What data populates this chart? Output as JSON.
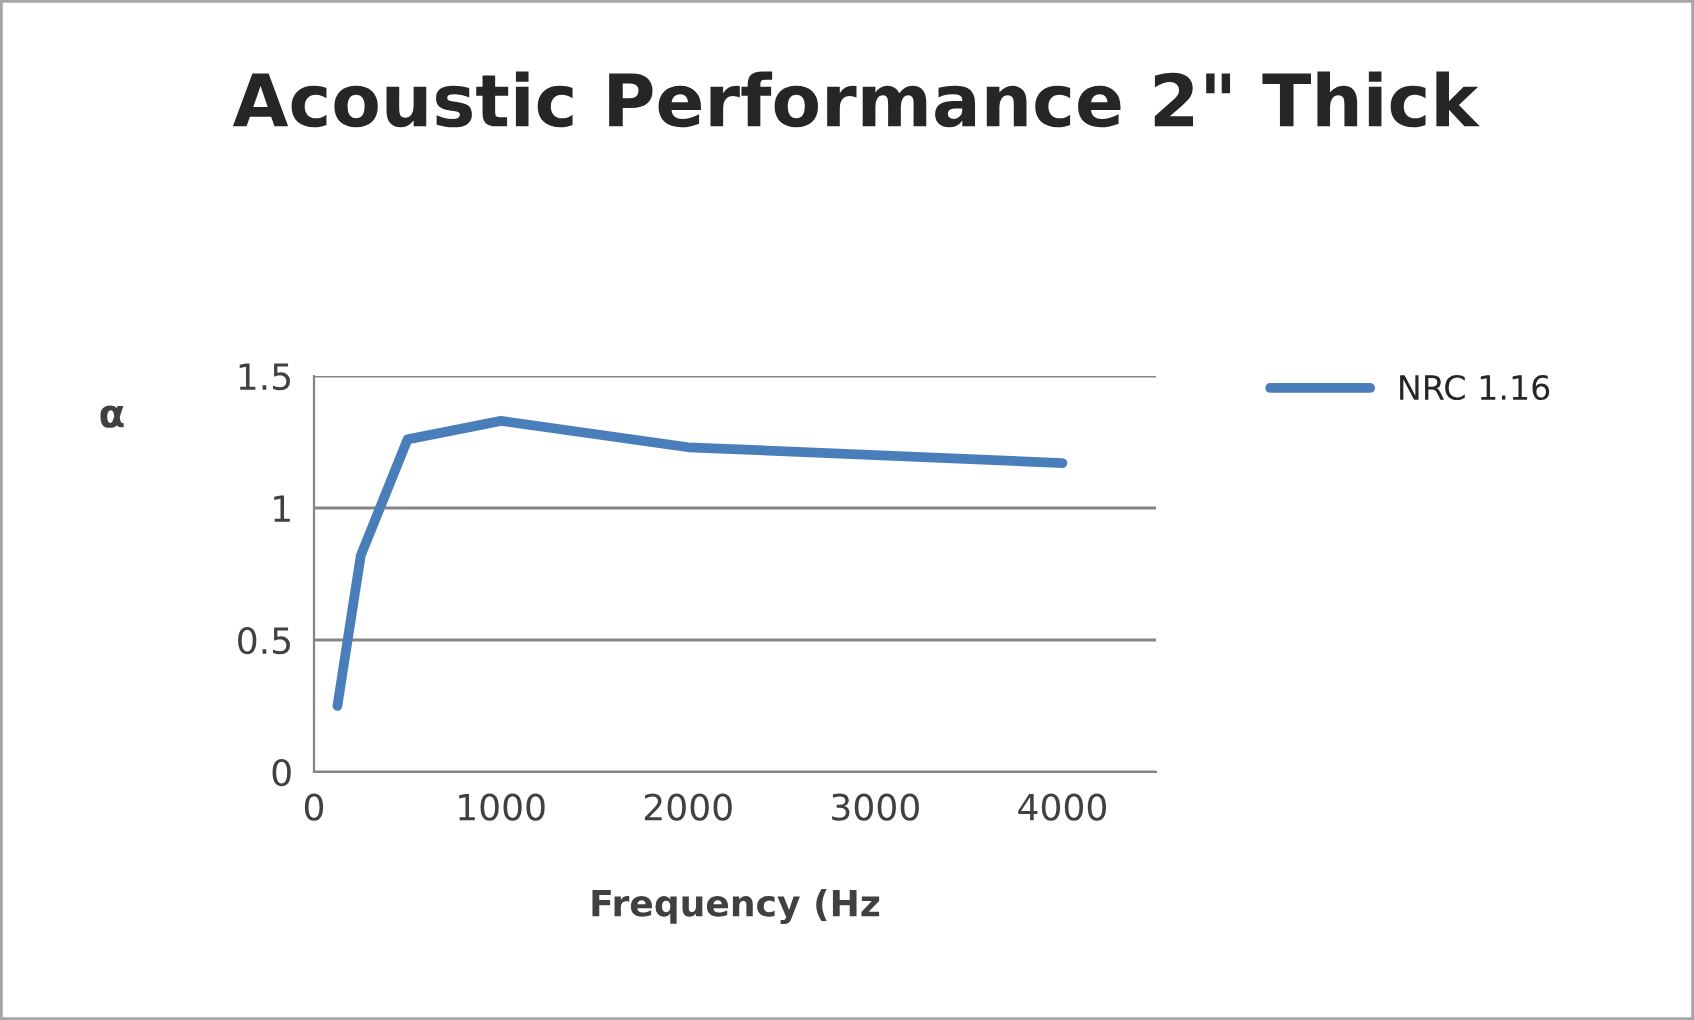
{
  "chart_data": {
    "type": "line",
    "title": "Acoustic Performance 2\" Thick",
    "xlabel": "Frequency (Hz",
    "ylabel": "α",
    "x": [
      125,
      250,
      500,
      1000,
      2000,
      4000
    ],
    "series": [
      {
        "name": "NRC 1.16",
        "color": "#4a7ebb",
        "values": [
          0.25,
          0.82,
          1.26,
          1.33,
          1.23,
          1.17
        ]
      }
    ],
    "xlim": [
      0,
      4500
    ],
    "xticks": [
      0,
      1000,
      2000,
      3000,
      4000
    ],
    "ylim": [
      0,
      1.5
    ],
    "yticks": [
      0,
      0.5,
      1,
      1.5
    ],
    "grid": "y",
    "legend": "right",
    "marker": "none",
    "line_style": "solid"
  }
}
